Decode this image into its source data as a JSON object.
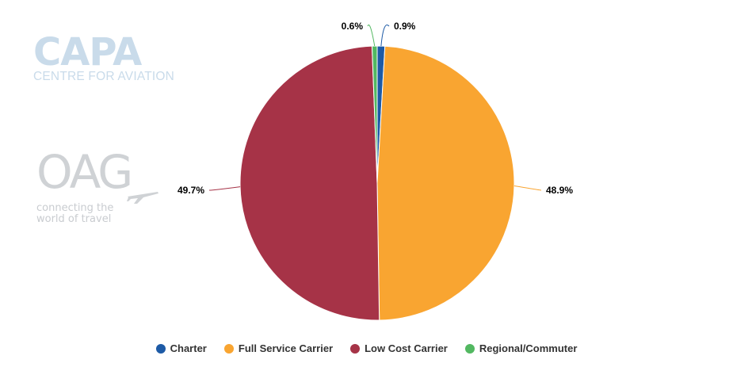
{
  "branding": {
    "capa_word": "CAPA",
    "capa_sub": "CENTRE FOR AVIATION",
    "oag_word": "OAG",
    "oag_tag_line1": "connecting the",
    "oag_tag_line2": "world of travel"
  },
  "chart_data": {
    "type": "pie",
    "title": "",
    "legend_position": "bottom-center",
    "slices": [
      {
        "name": "Charter",
        "value": 0.9,
        "label": "0.9%",
        "color": "#1d5aa6"
      },
      {
        "name": "Full Service Carrier",
        "value": 48.9,
        "label": "48.9%",
        "color": "#f9a531"
      },
      {
        "name": "Low Cost Carrier",
        "value": 49.7,
        "label": "49.7%",
        "color": "#a63347"
      },
      {
        "name": "Regional/Commuter",
        "value": 0.6,
        "label": "0.6%",
        "color": "#52b861"
      }
    ]
  }
}
